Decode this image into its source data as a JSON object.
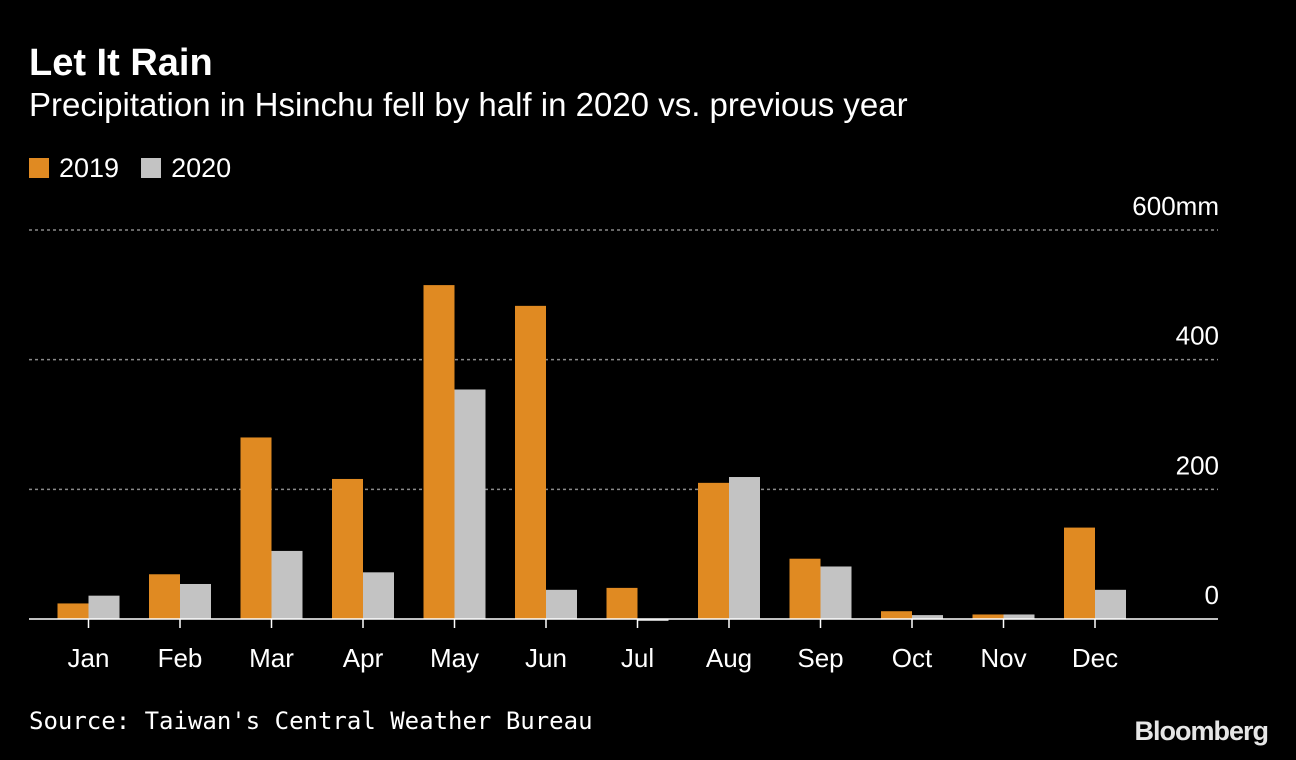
{
  "header": {
    "title": "Let It Rain",
    "subtitle": "Precipitation in Hsinchu fell by half in 2020 vs. previous year"
  },
  "footer": {
    "source": "Source: Taiwan's Central Weather Bureau",
    "brand": "Bloomberg"
  },
  "colors": {
    "background": "#000000",
    "grid": "#8a8a8a",
    "axis": "#ffffff",
    "text": "#ffffff"
  },
  "chart_data": {
    "type": "bar",
    "title": "Let It Rain",
    "subtitle": "Precipitation in Hsinchu fell by half in 2020 vs. previous year",
    "xlabel": "",
    "ylabel": "",
    "y_unit": "mm",
    "ylim": [
      0,
      600
    ],
    "yticks": [
      0,
      200,
      400,
      600
    ],
    "ytick_labels": [
      "0",
      "200",
      "400",
      "600mm"
    ],
    "grid": true,
    "legend_position": "top-left",
    "categories": [
      "Jan",
      "Feb",
      "Mar",
      "Apr",
      "May",
      "Jun",
      "Jul",
      "Aug",
      "Sep",
      "Oct",
      "Nov",
      "Dec"
    ],
    "series": [
      {
        "name": "2019",
        "color": "#e08a22",
        "values": [
          24,
          69,
          280,
          216,
          515,
          483,
          48,
          210,
          93,
          12,
          7,
          141
        ]
      },
      {
        "name": "2020",
        "color": "#c3c3c3",
        "values": [
          36,
          54,
          105,
          72,
          354,
          45,
          -3,
          219,
          81,
          6,
          7,
          45
        ]
      }
    ]
  }
}
